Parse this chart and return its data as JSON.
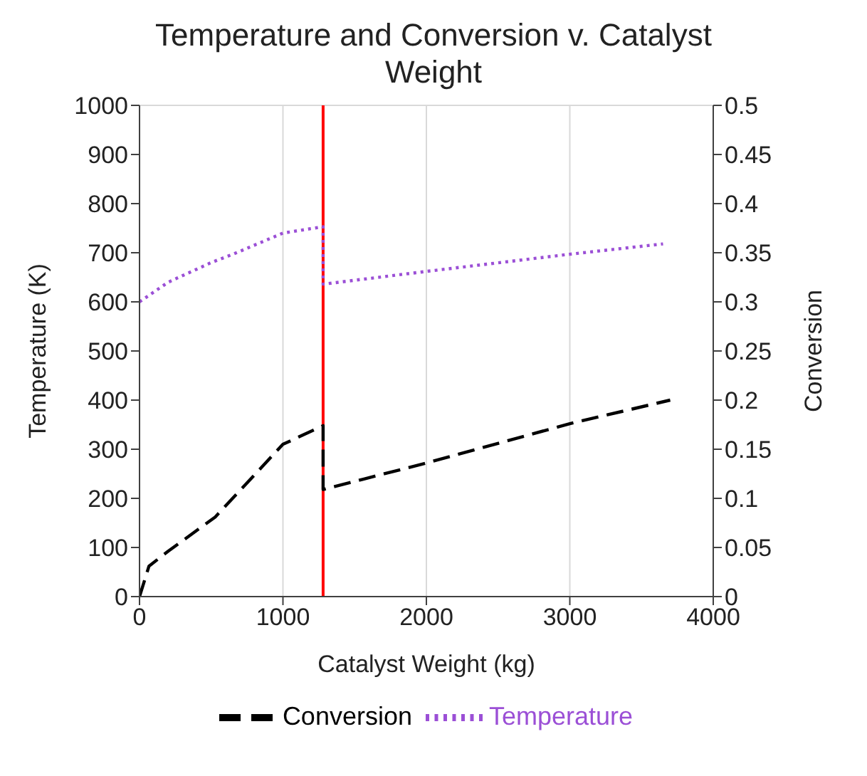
{
  "chart_data": {
    "type": "line",
    "title": "Temperature and Conversion v. Catalyst Weight",
    "xlabel": "Catalyst Weight (kg)",
    "ylabel": "Temperature (K)",
    "y2label": "Conversion",
    "series": [
      {
        "name": "Temperature",
        "color": "#9b4fd6",
        "line_style": "dotted",
        "x": [
          0,
          200,
          500,
          660,
          1000,
          1280,
          1280,
          2000,
          3000,
          3650
        ],
        "values": [
          600,
          640,
          680,
          698,
          740,
          753,
          636,
          662,
          697,
          718
        ]
      },
      {
        "name": "Conversion",
        "color": "#000000",
        "line_style": "dashed",
        "axis": "y2",
        "x": [
          0,
          66,
          198,
          528,
          1000,
          1280,
          1280,
          2000,
          3000,
          3700
        ],
        "values": [
          0,
          0.031,
          0.046,
          0.081,
          0.155,
          0.174,
          0.109,
          0.136,
          0.176,
          0.2
        ]
      }
    ],
    "xlim": [
      0,
      4000
    ],
    "xticks": [
      0,
      1000,
      2000,
      3000,
      4000
    ],
    "ylim": [
      0,
      1000
    ],
    "yticks": [
      0,
      100,
      200,
      300,
      400,
      500,
      600,
      700,
      800,
      900,
      1000
    ],
    "y2lim": [
      0,
      0.5
    ],
    "y2ticks": [
      0,
      0.05,
      0.1,
      0.15,
      0.2,
      0.25,
      0.3,
      0.35,
      0.4,
      0.45,
      0.5
    ],
    "ref_lines": [
      {
        "axis": "x",
        "value": 1280,
        "color": "#ff0000"
      }
    ],
    "grid": true,
    "legend": "bottom",
    "marker": "none"
  }
}
